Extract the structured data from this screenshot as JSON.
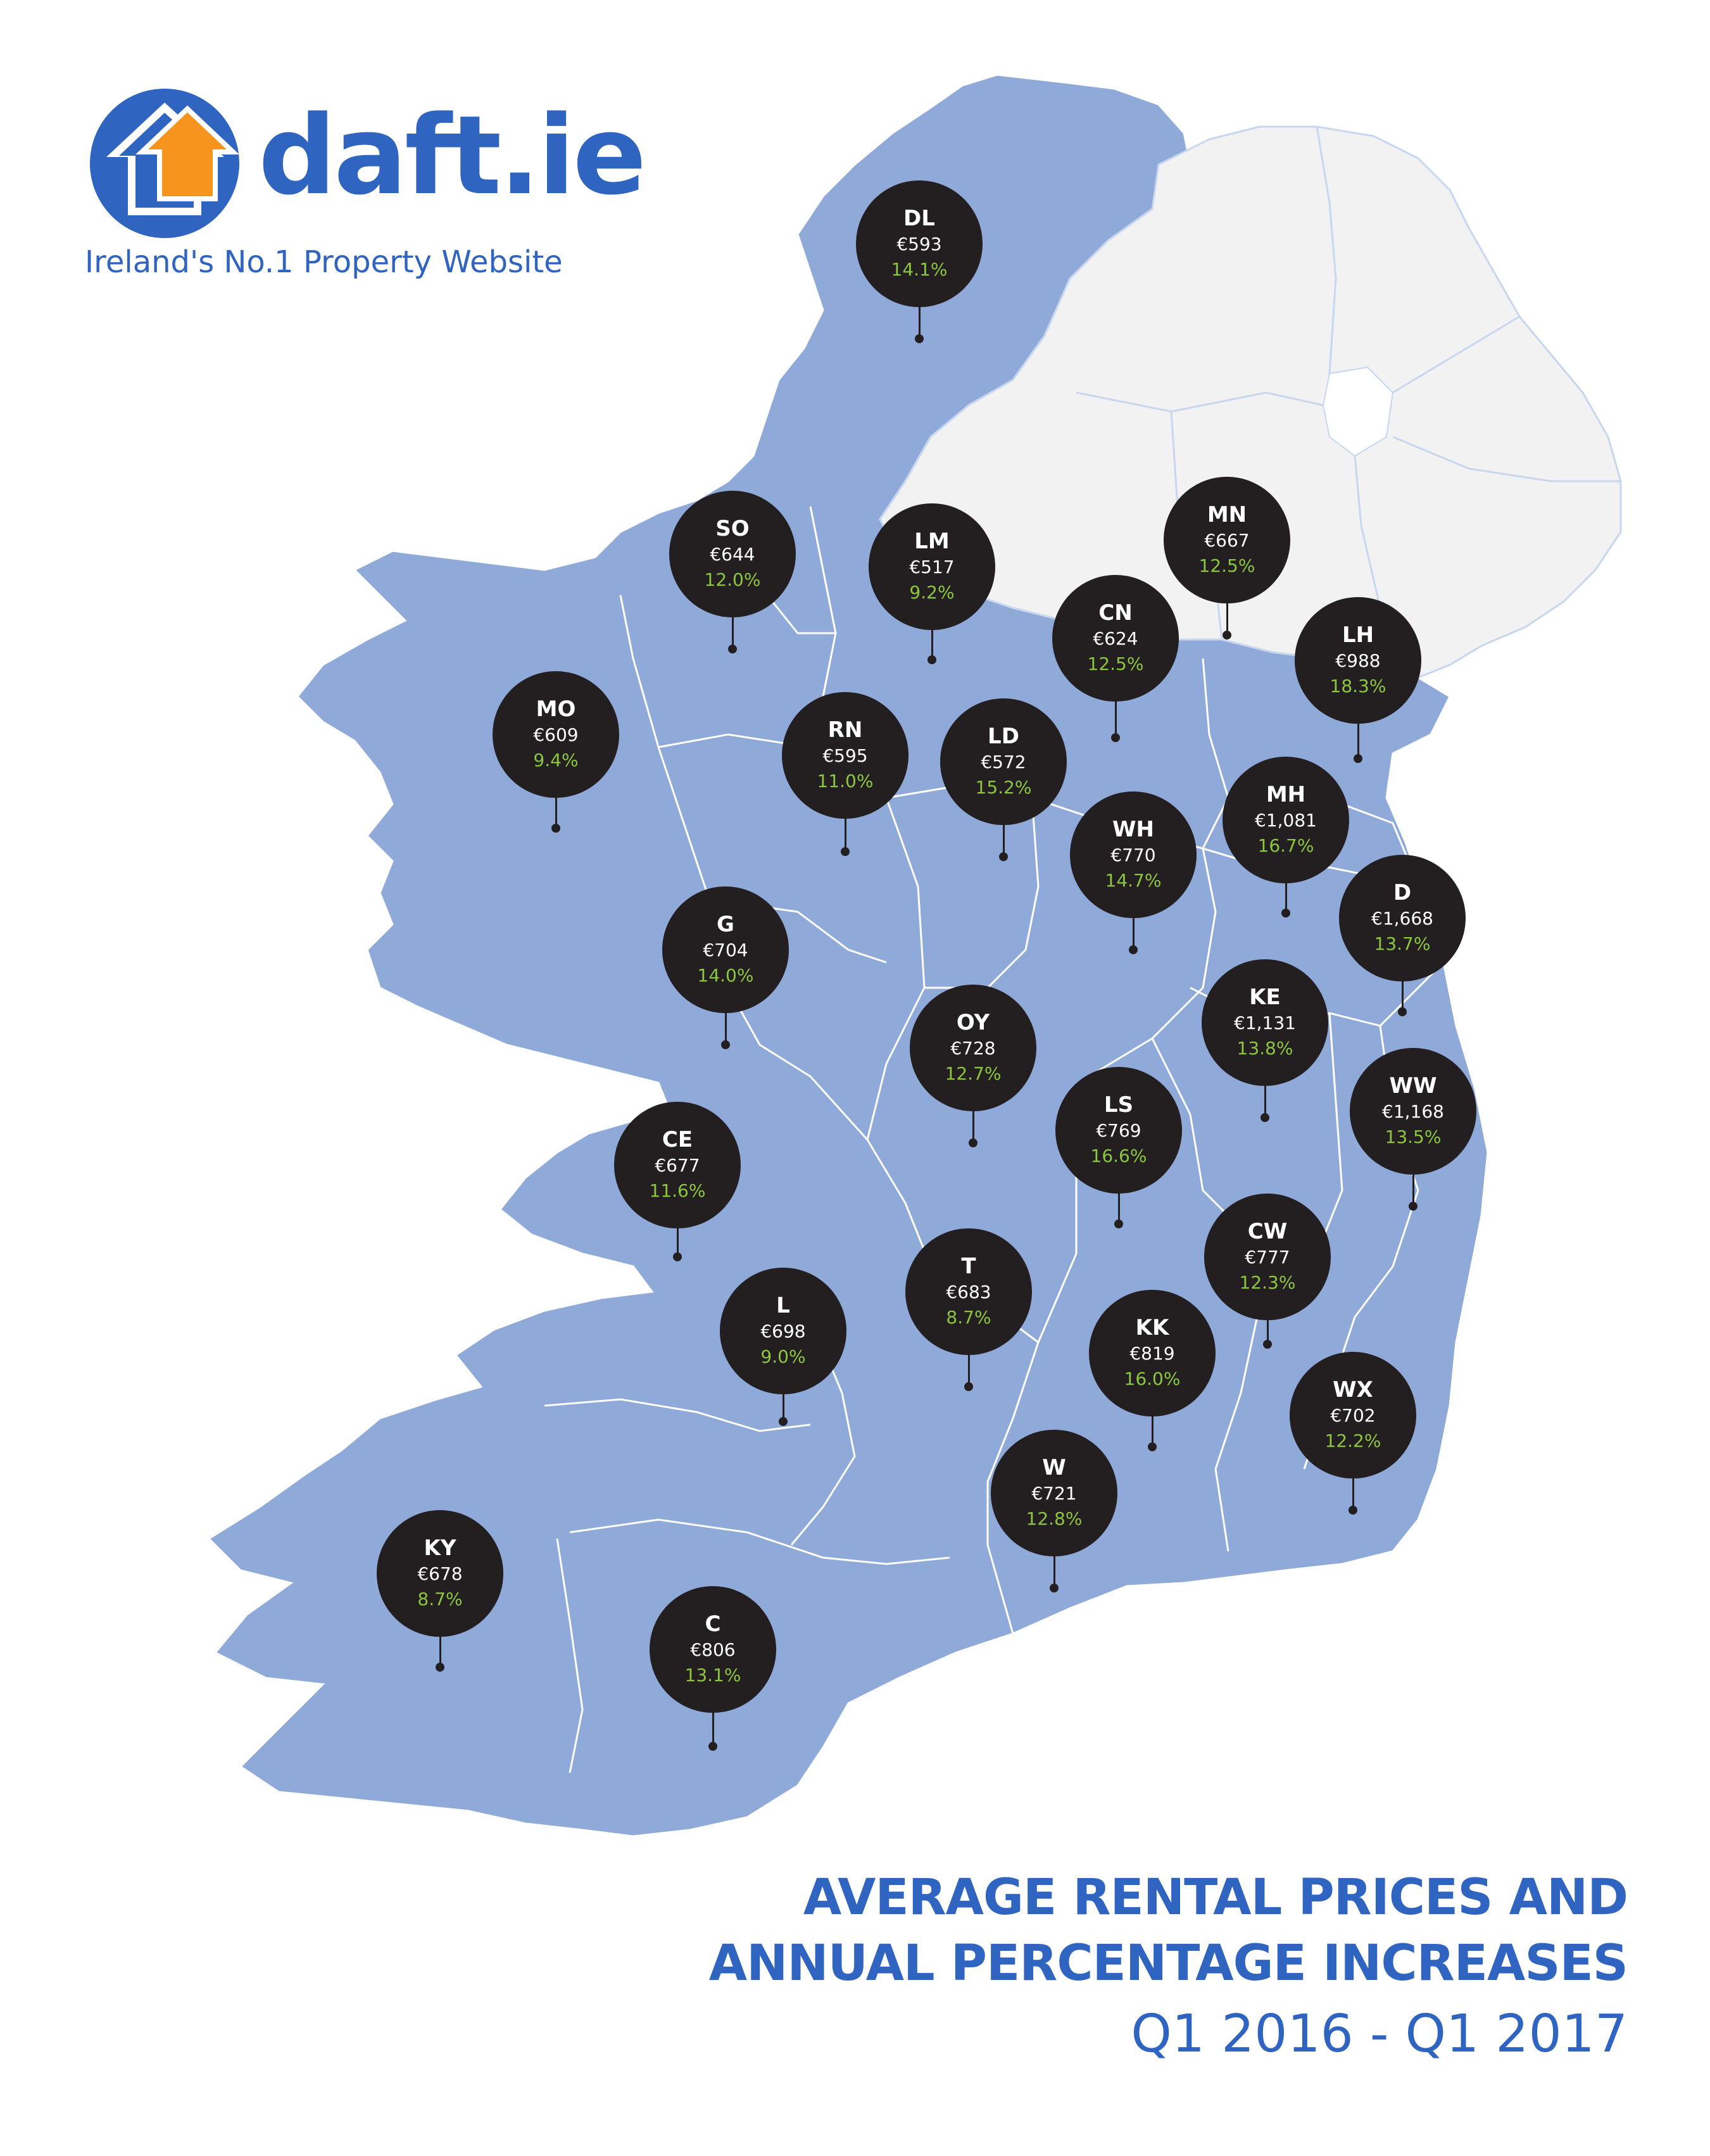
{
  "brand": {
    "name": "daft.ie",
    "tagline": "Ireland's No.1 Property Website"
  },
  "title": {
    "line1": "AVERAGE RENTAL PRICES AND",
    "line2": "ANNUAL PERCENTAGE INCREASES",
    "period": "Q1 2016 - Q1  2017"
  },
  "colors": {
    "republic": "#8faad8",
    "northern_ireland": "#f2f2f2",
    "marker": "#231f20",
    "increase": "#8cc63f",
    "brand_blue": "#2f64c0",
    "brand_orange": "#f7941d"
  },
  "counties": [
    {
      "code": "DL",
      "price": "€593",
      "change": "14.1%"
    },
    {
      "code": "SO",
      "price": "€644",
      "change": "12.0%"
    },
    {
      "code": "LM",
      "price": "€517",
      "change": "9.2%"
    },
    {
      "code": "MN",
      "price": "€667",
      "change": "12.5%"
    },
    {
      "code": "CN",
      "price": "€624",
      "change": "12.5%"
    },
    {
      "code": "LH",
      "price": "€988",
      "change": "18.3%"
    },
    {
      "code": "MO",
      "price": "€609",
      "change": "9.4%"
    },
    {
      "code": "RN",
      "price": "€595",
      "change": "11.0%"
    },
    {
      "code": "LD",
      "price": "€572",
      "change": "15.2%"
    },
    {
      "code": "MH",
      "price": "€1,081",
      "change": "16.7%"
    },
    {
      "code": "WH",
      "price": "€770",
      "change": "14.7%"
    },
    {
      "code": "D",
      "price": "€1,668",
      "change": "13.7%"
    },
    {
      "code": "G",
      "price": "€704",
      "change": "14.0%"
    },
    {
      "code": "OY",
      "price": "€728",
      "change": "12.7%"
    },
    {
      "code": "KE",
      "price": "€1,131",
      "change": "13.8%"
    },
    {
      "code": "LS",
      "price": "€769",
      "change": "16.6%"
    },
    {
      "code": "WW",
      "price": "€1,168",
      "change": "13.5%"
    },
    {
      "code": "CE",
      "price": "€677",
      "change": "11.6%"
    },
    {
      "code": "CW",
      "price": "€777",
      "change": "12.3%"
    },
    {
      "code": "T",
      "price": "€683",
      "change": "8.7%"
    },
    {
      "code": "L",
      "price": "€698",
      "change": "9.0%"
    },
    {
      "code": "KK",
      "price": "€819",
      "change": "16.0%"
    },
    {
      "code": "WX",
      "price": "€702",
      "change": "12.2%"
    },
    {
      "code": "W",
      "price": "€721",
      "change": "12.8%"
    },
    {
      "code": "KY",
      "price": "€678",
      "change": "8.7%"
    },
    {
      "code": "C",
      "price": "€806",
      "change": "13.1%"
    }
  ]
}
